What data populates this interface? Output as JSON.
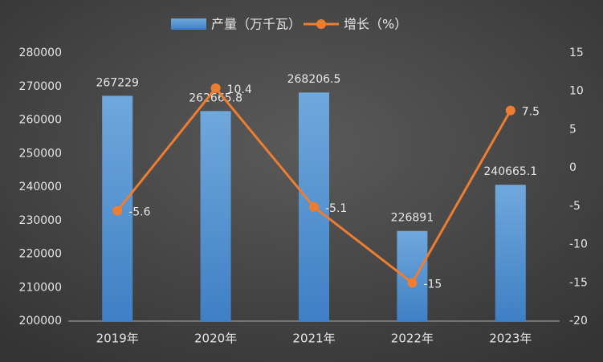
{
  "chart_data": {
    "type": "bar-line",
    "categories": [
      "2019年",
      "2020年",
      "2021年",
      "2022年",
      "2023年"
    ],
    "series": [
      {
        "name": "产量（万千瓦）",
        "type": "bar",
        "color": "#5b9bd5",
        "values": [
          267229,
          262665.8,
          268206.5,
          226891,
          240665.1
        ]
      },
      {
        "name": "增长（%）",
        "type": "line",
        "axis": "y2",
        "color": "#ed7d31",
        "values": [
          -5.6,
          10.4,
          -5.1,
          -15,
          7.5
        ]
      }
    ],
    "ylim": [
      200000,
      280000
    ],
    "yticks": [
      200000,
      210000,
      220000,
      230000,
      240000,
      250000,
      260000,
      270000,
      280000
    ],
    "y2lim": [
      -20,
      15
    ],
    "y2ticks": [
      -20,
      -15,
      -10,
      -5,
      0,
      5,
      10,
      15
    ],
    "grid": false,
    "legend": "top"
  }
}
